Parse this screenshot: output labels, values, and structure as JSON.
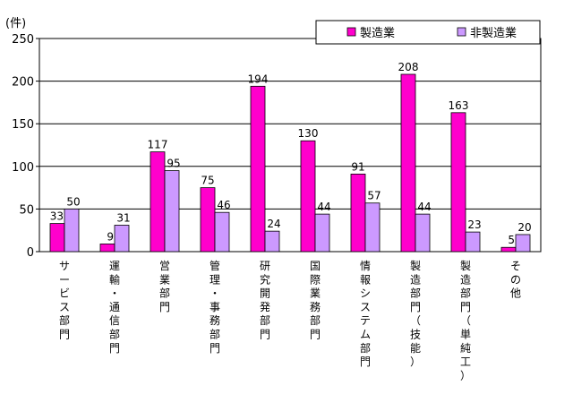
{
  "chart_data": {
    "type": "bar",
    "unit_label": "(件)",
    "ylim": [
      0,
      250
    ],
    "yticks": [
      0,
      50,
      100,
      150,
      200,
      250
    ],
    "grid": true,
    "legend_position": "top-right",
    "categories": [
      "サービス部門",
      "運輸・通信部門",
      "営業部門",
      "管理・事務部門",
      "研究開発部門",
      "国際業務部門",
      "情報システム部門",
      "製造部門（技能）",
      "製造部門（単純工）",
      "その他"
    ],
    "series": [
      {
        "name": "製造業",
        "color": "#ff00cc",
        "values": [
          33,
          9,
          117,
          75,
          194,
          130,
          91,
          208,
          163,
          5
        ]
      },
      {
        "name": "非製造業",
        "color": "#cc99ff",
        "values": [
          50,
          31,
          95,
          46,
          24,
          44,
          57,
          44,
          23,
          20
        ]
      }
    ]
  }
}
